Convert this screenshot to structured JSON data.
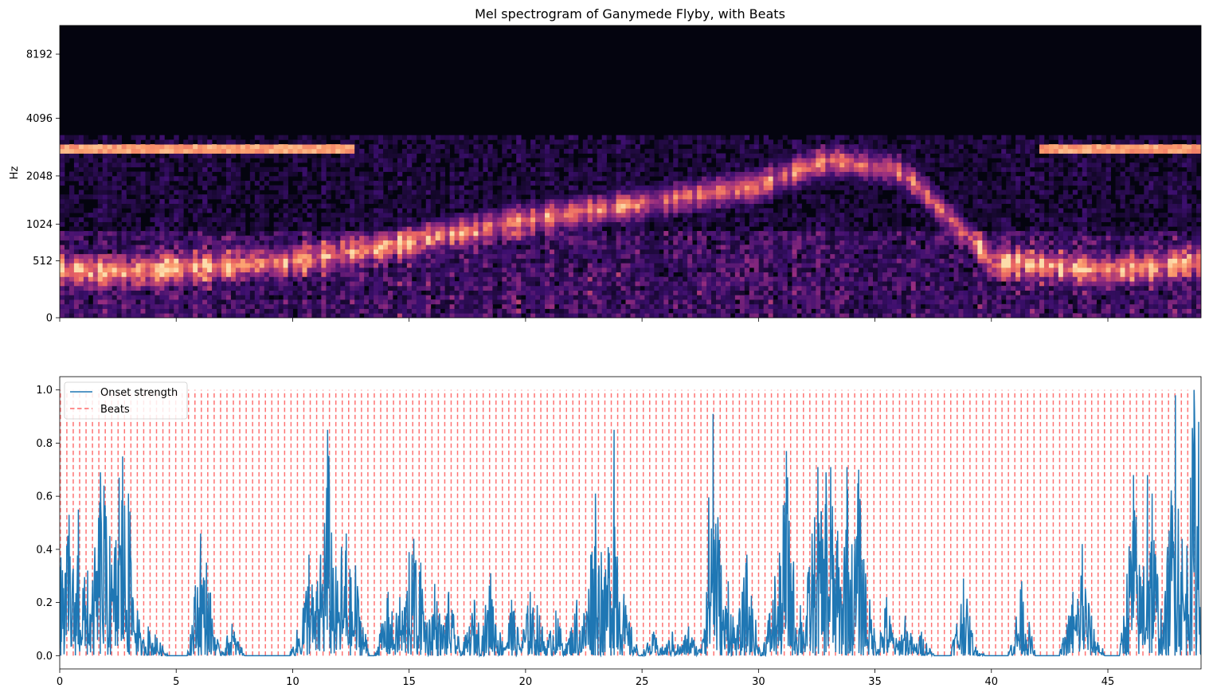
{
  "colors": {
    "onset": "#1f77b4",
    "beats": "#ff6b6b",
    "spec_dark": "#04040f",
    "spec_mid": "#5b1f7a",
    "spec_hot": "#f5896a",
    "spec_peak": "#fcd6a4"
  },
  "chart_data": [
    {
      "type": "heatmap",
      "title": "Mel spectrogram of Ganymede Flyby, with Beats",
      "xlabel": "",
      "ylabel": "Hz",
      "xlim": [
        0,
        49
      ],
      "yticks": [
        "0",
        "512",
        "1024",
        "2048",
        "4096",
        "8192"
      ],
      "ytick_values_hz": [
        0,
        512,
        1024,
        2048,
        4096,
        8192
      ],
      "ylim_hz": [
        0,
        11025
      ],
      "colormap": "magma",
      "features": {
        "band_3000hz": {
          "freq_hz": 2900,
          "active_until_s": 12.7,
          "resumes_at_s": 42.0
        },
        "sweep": [
          {
            "t": 3,
            "hz": 400
          },
          {
            "t": 10,
            "hz": 500
          },
          {
            "t": 14,
            "hz": 700
          },
          {
            "t": 20,
            "hz": 1100
          },
          {
            "t": 25,
            "hz": 1400
          },
          {
            "t": 30,
            "hz": 1800
          },
          {
            "t": 33,
            "hz": 2500
          },
          {
            "t": 36,
            "hz": 2200
          },
          {
            "t": 38,
            "hz": 1200
          },
          {
            "t": 40,
            "hz": 500
          },
          {
            "t": 45,
            "hz": 400
          },
          {
            "t": 49,
            "hz": 500
          }
        ]
      }
    },
    {
      "type": "line",
      "xlim": [
        0,
        49
      ],
      "ylim": [
        -0.05,
        1.05
      ],
      "xticks": [
        "0",
        "5",
        "10",
        "15",
        "20",
        "25",
        "30",
        "35",
        "40",
        "45"
      ],
      "xtick_values": [
        0,
        5,
        10,
        15,
        20,
        25,
        30,
        35,
        40,
        45
      ],
      "yticks": [
        "0.0",
        "0.2",
        "0.4",
        "0.6",
        "0.8",
        "1.0"
      ],
      "ytick_values": [
        0.0,
        0.2,
        0.4,
        0.6,
        0.8,
        1.0
      ],
      "legend": {
        "position": "top-left",
        "entries": [
          {
            "label": "Onset strength",
            "style": "solid"
          },
          {
            "label": "Beats",
            "style": "dashed"
          }
        ]
      },
      "beats": {
        "first": 0.03,
        "interval": 0.275,
        "last": 48.9
      },
      "series": [
        {
          "name": "Onset strength",
          "peaks": [
            [
              0.05,
              0.37
            ],
            [
              0.4,
              0.53
            ],
            [
              0.8,
              0.55
            ],
            [
              1.2,
              0.32
            ],
            [
              1.75,
              0.69
            ],
            [
              1.9,
              0.64
            ],
            [
              2.15,
              0.45
            ],
            [
              2.55,
              0.67
            ],
            [
              2.7,
              0.75
            ],
            [
              2.95,
              0.61
            ],
            [
              3.8,
              0.11
            ],
            [
              4.1,
              0.08
            ],
            [
              6.05,
              0.46
            ],
            [
              6.3,
              0.35
            ],
            [
              7.4,
              0.12
            ],
            [
              10.45,
              0.18
            ],
            [
              10.7,
              0.38
            ],
            [
              11.2,
              0.38
            ],
            [
              11.5,
              0.85
            ],
            [
              12.1,
              0.41
            ],
            [
              12.3,
              0.46
            ],
            [
              12.7,
              0.34
            ],
            [
              14.1,
              0.24
            ],
            [
              14.6,
              0.22
            ],
            [
              15.0,
              0.39
            ],
            [
              15.2,
              0.44
            ],
            [
              15.5,
              0.35
            ],
            [
              16.1,
              0.27
            ],
            [
              16.7,
              0.24
            ],
            [
              17.8,
              0.21
            ],
            [
              18.5,
              0.31
            ],
            [
              19.4,
              0.21
            ],
            [
              20.2,
              0.24
            ],
            [
              20.5,
              0.19
            ],
            [
              21.3,
              0.17
            ],
            [
              22.2,
              0.21
            ],
            [
              22.8,
              0.38
            ],
            [
              23.0,
              0.61
            ],
            [
              23.25,
              0.39
            ],
            [
              23.8,
              0.85
            ],
            [
              24.3,
              0.19
            ],
            [
              25.5,
              0.09
            ],
            [
              26.3,
              0.09
            ],
            [
              27.0,
              0.11
            ],
            [
              28.05,
              0.91
            ],
            [
              28.7,
              0.28
            ],
            [
              29.5,
              0.38
            ],
            [
              30.7,
              0.3
            ],
            [
              31.2,
              0.77
            ],
            [
              31.8,
              0.19
            ],
            [
              32.3,
              0.46
            ],
            [
              32.55,
              0.71
            ],
            [
              32.7,
              0.54
            ],
            [
              32.9,
              0.69
            ],
            [
              33.1,
              0.71
            ],
            [
              33.4,
              0.47
            ],
            [
              33.8,
              0.71
            ],
            [
              34.3,
              0.7
            ],
            [
              34.6,
              0.31
            ],
            [
              35.5,
              0.22
            ],
            [
              36.3,
              0.15
            ],
            [
              37.0,
              0.09
            ],
            [
              38.8,
              0.29
            ],
            [
              39.4,
              0.02
            ],
            [
              41.3,
              0.28
            ],
            [
              43.5,
              0.24
            ],
            [
              43.9,
              0.42
            ],
            [
              44.3,
              0.15
            ],
            [
              46.1,
              0.68
            ],
            [
              46.7,
              0.68
            ],
            [
              46.9,
              0.61
            ],
            [
              47.9,
              0.98
            ],
            [
              48.1,
              0.1
            ],
            [
              48.55,
              0.67
            ],
            [
              48.7,
              1.0
            ],
            [
              48.9,
              0.88
            ]
          ]
        }
      ]
    }
  ]
}
